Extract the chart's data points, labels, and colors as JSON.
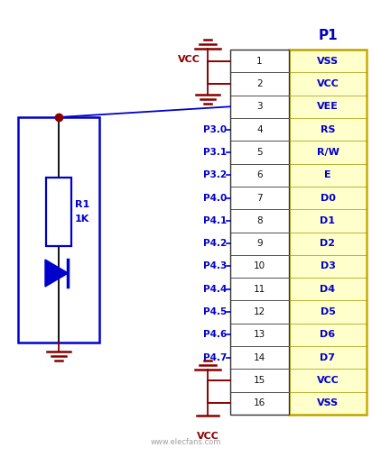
{
  "bg_color": "#ffffff",
  "connector_fill": "#ffffcc",
  "connector_border": "#ccaa00",
  "num_pins": 16,
  "connector_title": "P1",
  "connector_title_color": "#0000bb",
  "left_labels": [
    "",
    "",
    "",
    "P3.0",
    "P3.1",
    "P3.2",
    "P4.0",
    "P4.1",
    "P4.2",
    "P4.3",
    "P4.4",
    "P4.5",
    "P4.6",
    "P4.7",
    "",
    ""
  ],
  "pin_numbers": [
    "1",
    "2",
    "3",
    "4",
    "5",
    "6",
    "7",
    "8",
    "9",
    "10",
    "11",
    "12",
    "13",
    "14",
    "15",
    "16"
  ],
  "right_labels": [
    "VSS",
    "VCC",
    "VEE",
    "RS",
    "R/W",
    "E",
    "D0",
    "D1",
    "D2",
    "D3",
    "D4",
    "D5",
    "D6",
    "D7",
    "VCC",
    "VSS"
  ],
  "pin_label_color": "#0000cc",
  "pin_number_color": "#111111",
  "connector_label_color": "#0000cc",
  "vcc_color": "#880000",
  "wire_color": "#0000cc",
  "resistor_color": "#0000cc",
  "diode_color": "#0000cc",
  "dot_color": "#880000",
  "gnd_color": "#880000",
  "black": "#000000",
  "watermark": "www.elecfans.com",
  "watermark_color": "#888888",
  "figw": 4.12,
  "figh": 5.07,
  "dpi": 100
}
